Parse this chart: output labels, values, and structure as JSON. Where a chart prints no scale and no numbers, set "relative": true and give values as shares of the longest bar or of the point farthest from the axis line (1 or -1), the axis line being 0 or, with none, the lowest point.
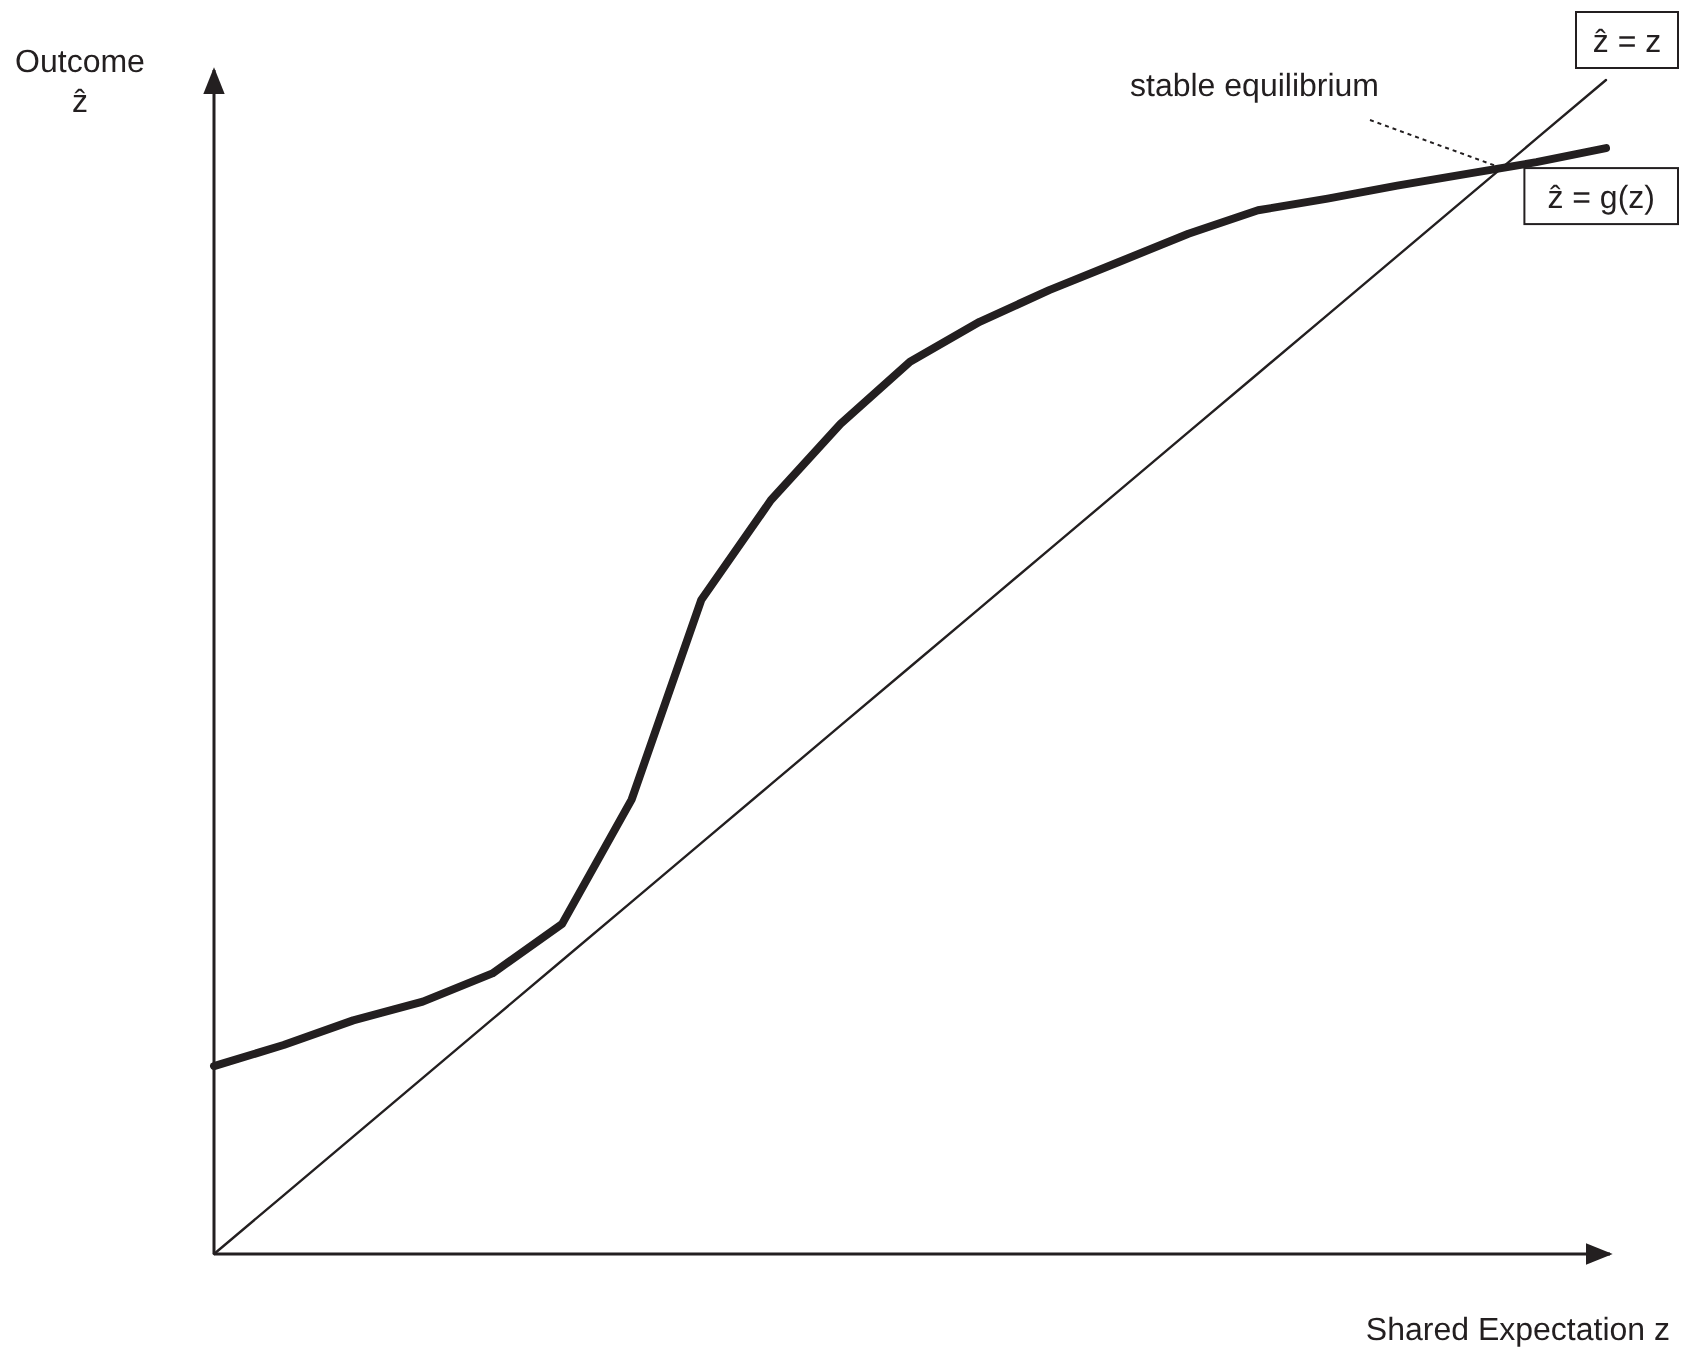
{
  "chart_data": {
    "type": "line",
    "relative": true,
    "xlabel": "Shared Expectation z",
    "ylabel": "Outcome\nẑ",
    "legend": false,
    "categories": [
      null,
      null,
      null,
      null,
      null,
      null,
      null,
      null,
      null,
      null,
      null,
      null,
      null,
      null,
      null,
      null,
      null,
      null,
      null,
      null,
      null
    ],
    "series": [
      {
        "name": "ẑ = g(z)",
        "color": "#231f20",
        "values": [
          0.16,
          0.178,
          0.199,
          0.215,
          0.239,
          0.281,
          0.387,
          0.557,
          0.642,
          0.707,
          0.76,
          0.794,
          0.821,
          0.845,
          0.869,
          0.889,
          0.899,
          0.91,
          0.92,
          0.93,
          0.942
        ]
      },
      {
        "name": "ẑ = z",
        "color": "#231f20",
        "values": [
          0,
          0.05,
          0.1,
          0.15,
          0.2,
          0.25,
          0.3,
          0.35,
          0.4,
          0.45,
          0.5,
          0.55,
          0.6,
          0.65,
          0.7,
          0.75,
          0.8,
          0.85,
          0.9,
          0.95,
          1
        ]
      }
    ],
    "annotations": [
      "stable equilibrium"
    ]
  }
}
